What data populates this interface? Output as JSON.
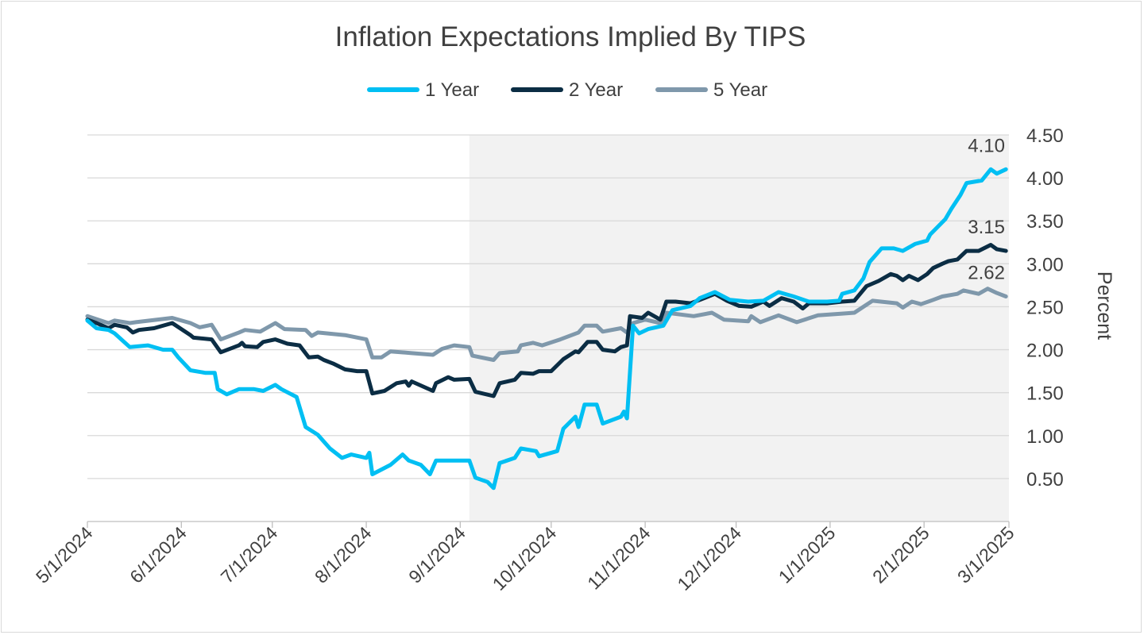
{
  "chart_data": {
    "type": "line",
    "title": "Inflation Expectations Implied By TIPS",
    "ylabel": "Percent",
    "xlabel": "",
    "ylim": [
      0,
      4.5
    ],
    "y_ticks": [
      "0.50",
      "1.00",
      "1.50",
      "2.00",
      "2.50",
      "3.00",
      "3.50",
      "4.00",
      "4.50"
    ],
    "y_axis_side": "right",
    "xlim": [
      "2024-05-01",
      "2025-03-01"
    ],
    "x_ticks": [
      "5/1/2024",
      "6/1/2024",
      "7/1/2024",
      "8/1/2024",
      "9/1/2024",
      "10/1/2024",
      "11/1/2024",
      "12/1/2024",
      "1/1/2025",
      "2/1/2025",
      "3/1/2025"
    ],
    "x_tick_dates": [
      "2024-05-01",
      "2024-06-01",
      "2024-07-01",
      "2024-08-01",
      "2024-09-01",
      "2024-10-01",
      "2024-11-01",
      "2024-12-01",
      "2025-01-01",
      "2025-02-01",
      "2025-03-01"
    ],
    "grid": "horizontal",
    "legend_position": "top",
    "shaded_region": {
      "start": "2024-09-04",
      "end": "2025-03-01",
      "color": "#F2F2F2"
    },
    "series": [
      {
        "name": "1 Year",
        "color": "#00BFF3",
        "end_label": "4.10",
        "points": [
          [
            "2024-05-01",
            2.34
          ],
          [
            "2024-05-04",
            2.25
          ],
          [
            "2024-05-08",
            2.23
          ],
          [
            "2024-05-10",
            2.19
          ],
          [
            "2024-05-15",
            2.03
          ],
          [
            "2024-05-21",
            2.05
          ],
          [
            "2024-05-26",
            2.0
          ],
          [
            "2024-05-29",
            2.0
          ],
          [
            "2024-05-31",
            1.91
          ],
          [
            "2024-06-04",
            1.76
          ],
          [
            "2024-06-09",
            1.73
          ],
          [
            "2024-06-12",
            1.73
          ],
          [
            "2024-06-13",
            1.54
          ],
          [
            "2024-06-16",
            1.48
          ],
          [
            "2024-06-20",
            1.54
          ],
          [
            "2024-06-25",
            1.54
          ],
          [
            "2024-06-28",
            1.52
          ],
          [
            "2024-07-02",
            1.59
          ],
          [
            "2024-07-04",
            1.54
          ],
          [
            "2024-07-09",
            1.45
          ],
          [
            "2024-07-12",
            1.1
          ],
          [
            "2024-07-16",
            1.01
          ],
          [
            "2024-07-20",
            0.85
          ],
          [
            "2024-07-24",
            0.74
          ],
          [
            "2024-07-27",
            0.78
          ],
          [
            "2024-08-01",
            0.74
          ],
          [
            "2024-08-02",
            0.8
          ],
          [
            "2024-08-03",
            0.55
          ],
          [
            "2024-08-09",
            0.66
          ],
          [
            "2024-08-13",
            0.78
          ],
          [
            "2024-08-15",
            0.71
          ],
          [
            "2024-08-19",
            0.66
          ],
          [
            "2024-08-22",
            0.55
          ],
          [
            "2024-08-24",
            0.71
          ],
          [
            "2024-08-28",
            0.71
          ],
          [
            "2024-08-31",
            0.71
          ],
          [
            "2024-09-04",
            0.71
          ],
          [
            "2024-09-06",
            0.51
          ],
          [
            "2024-09-10",
            0.46
          ],
          [
            "2024-09-12",
            0.39
          ],
          [
            "2024-09-14",
            0.68
          ],
          [
            "2024-09-19",
            0.74
          ],
          [
            "2024-09-21",
            0.85
          ],
          [
            "2024-09-26",
            0.82
          ],
          [
            "2024-09-27",
            0.76
          ],
          [
            "2024-10-03",
            0.82
          ],
          [
            "2024-10-05",
            1.08
          ],
          [
            "2024-10-09",
            1.22
          ],
          [
            "2024-10-10",
            1.1
          ],
          [
            "2024-10-12",
            1.36
          ],
          [
            "2024-10-16",
            1.36
          ],
          [
            "2024-10-18",
            1.14
          ],
          [
            "2024-10-24",
            1.22
          ],
          [
            "2024-10-25",
            1.28
          ],
          [
            "2024-10-26",
            1.2
          ],
          [
            "2024-10-28",
            2.28
          ],
          [
            "2024-10-30",
            2.19
          ],
          [
            "2024-11-02",
            2.24
          ],
          [
            "2024-11-07",
            2.28
          ],
          [
            "2024-11-10",
            2.46
          ],
          [
            "2024-11-16",
            2.51
          ],
          [
            "2024-11-19",
            2.6
          ],
          [
            "2024-11-24",
            2.67
          ],
          [
            "2024-11-29",
            2.58
          ],
          [
            "2024-12-05",
            2.56
          ],
          [
            "2024-12-10",
            2.57
          ],
          [
            "2024-12-15",
            2.67
          ],
          [
            "2024-12-20",
            2.62
          ],
          [
            "2024-12-25",
            2.56
          ],
          [
            "2024-12-31",
            2.56
          ],
          [
            "2025-01-04",
            2.57
          ],
          [
            "2025-01-05",
            2.65
          ],
          [
            "2025-01-09",
            2.69
          ],
          [
            "2025-01-12",
            2.83
          ],
          [
            "2025-01-14",
            3.02
          ],
          [
            "2025-01-18",
            3.18
          ],
          [
            "2025-01-22",
            3.18
          ],
          [
            "2025-01-25",
            3.15
          ],
          [
            "2025-01-29",
            3.23
          ],
          [
            "2025-02-02",
            3.27
          ],
          [
            "2025-02-03",
            3.34
          ],
          [
            "2025-02-08",
            3.52
          ],
          [
            "2025-02-10",
            3.64
          ],
          [
            "2025-02-13",
            3.8
          ],
          [
            "2025-02-15",
            3.94
          ],
          [
            "2025-02-20",
            3.97
          ],
          [
            "2025-02-23",
            4.1
          ],
          [
            "2025-02-25",
            4.05
          ],
          [
            "2025-02-28",
            4.1
          ]
        ]
      },
      {
        "name": "2 Year",
        "color": "#0B2D44",
        "end_label": "3.15",
        "points": [
          [
            "2024-05-01",
            2.35
          ],
          [
            "2024-05-04",
            2.31
          ],
          [
            "2024-05-08",
            2.25
          ],
          [
            "2024-05-10",
            2.29
          ],
          [
            "2024-05-14",
            2.26
          ],
          [
            "2024-05-16",
            2.2
          ],
          [
            "2024-05-18",
            2.23
          ],
          [
            "2024-05-23",
            2.25
          ],
          [
            "2024-05-29",
            2.31
          ],
          [
            "2024-06-04",
            2.17
          ],
          [
            "2024-06-05",
            2.14
          ],
          [
            "2024-06-11",
            2.12
          ],
          [
            "2024-06-14",
            1.97
          ],
          [
            "2024-06-20",
            2.05
          ],
          [
            "2024-06-21",
            2.08
          ],
          [
            "2024-06-22",
            2.04
          ],
          [
            "2024-06-26",
            2.03
          ],
          [
            "2024-06-28",
            2.09
          ],
          [
            "2024-07-02",
            2.12
          ],
          [
            "2024-07-06",
            2.07
          ],
          [
            "2024-07-10",
            2.05
          ],
          [
            "2024-07-13",
            1.91
          ],
          [
            "2024-07-16",
            1.92
          ],
          [
            "2024-07-18",
            1.88
          ],
          [
            "2024-07-21",
            1.84
          ],
          [
            "2024-07-25",
            1.77
          ],
          [
            "2024-07-29",
            1.75
          ],
          [
            "2024-08-01",
            1.75
          ],
          [
            "2024-08-03",
            1.49
          ],
          [
            "2024-08-07",
            1.52
          ],
          [
            "2024-08-11",
            1.61
          ],
          [
            "2024-08-14",
            1.63
          ],
          [
            "2024-08-15",
            1.58
          ],
          [
            "2024-08-16",
            1.63
          ],
          [
            "2024-08-23",
            1.52
          ],
          [
            "2024-08-24",
            1.61
          ],
          [
            "2024-08-28",
            1.68
          ],
          [
            "2024-08-30",
            1.65
          ],
          [
            "2024-09-04",
            1.66
          ],
          [
            "2024-09-06",
            1.51
          ],
          [
            "2024-09-12",
            1.46
          ],
          [
            "2024-09-14",
            1.61
          ],
          [
            "2024-09-19",
            1.65
          ],
          [
            "2024-09-21",
            1.73
          ],
          [
            "2024-09-25",
            1.72
          ],
          [
            "2024-09-27",
            1.75
          ],
          [
            "2024-10-01",
            1.75
          ],
          [
            "2024-10-05",
            1.89
          ],
          [
            "2024-10-09",
            1.98
          ],
          [
            "2024-10-10",
            1.97
          ],
          [
            "2024-10-13",
            2.09
          ],
          [
            "2024-10-16",
            2.09
          ],
          [
            "2024-10-18",
            2.0
          ],
          [
            "2024-10-22",
            1.98
          ],
          [
            "2024-10-24",
            2.03
          ],
          [
            "2024-10-26",
            2.05
          ],
          [
            "2024-10-27",
            2.39
          ],
          [
            "2024-10-31",
            2.37
          ],
          [
            "2024-11-02",
            2.43
          ],
          [
            "2024-11-06",
            2.35
          ],
          [
            "2024-11-08",
            2.56
          ],
          [
            "2024-11-11",
            2.56
          ],
          [
            "2024-11-16",
            2.54
          ],
          [
            "2024-11-19",
            2.58
          ],
          [
            "2024-11-24",
            2.65
          ],
          [
            "2024-11-28",
            2.57
          ],
          [
            "2024-12-02",
            2.51
          ],
          [
            "2024-12-06",
            2.5
          ],
          [
            "2024-12-10",
            2.56
          ],
          [
            "2024-12-12",
            2.51
          ],
          [
            "2024-12-16",
            2.6
          ],
          [
            "2024-12-20",
            2.56
          ],
          [
            "2024-12-23",
            2.48
          ],
          [
            "2024-12-25",
            2.54
          ],
          [
            "2024-12-31",
            2.54
          ],
          [
            "2025-01-05",
            2.56
          ],
          [
            "2025-01-09",
            2.57
          ],
          [
            "2025-01-13",
            2.74
          ],
          [
            "2025-01-17",
            2.8
          ],
          [
            "2025-01-21",
            2.88
          ],
          [
            "2025-01-23",
            2.86
          ],
          [
            "2025-01-25",
            2.81
          ],
          [
            "2025-01-27",
            2.86
          ],
          [
            "2025-01-30",
            2.81
          ],
          [
            "2025-02-02",
            2.88
          ],
          [
            "2025-02-04",
            2.95
          ],
          [
            "2025-02-07",
            3.0
          ],
          [
            "2025-02-09",
            3.03
          ],
          [
            "2025-02-12",
            3.05
          ],
          [
            "2025-02-15",
            3.15
          ],
          [
            "2025-02-19",
            3.15
          ],
          [
            "2025-02-23",
            3.22
          ],
          [
            "2025-02-25",
            3.17
          ],
          [
            "2025-02-28",
            3.15
          ]
        ]
      },
      {
        "name": "5 Year",
        "color": "#7F98AB",
        "end_label": "2.62",
        "points": [
          [
            "2024-05-01",
            2.39
          ],
          [
            "2024-05-07",
            2.32
          ],
          [
            "2024-05-08",
            2.31
          ],
          [
            "2024-05-10",
            2.34
          ],
          [
            "2024-05-15",
            2.31
          ],
          [
            "2024-05-17",
            2.32
          ],
          [
            "2024-05-29",
            2.37
          ],
          [
            "2024-06-04",
            2.31
          ],
          [
            "2024-06-07",
            2.26
          ],
          [
            "2024-06-11",
            2.29
          ],
          [
            "2024-06-14",
            2.12
          ],
          [
            "2024-06-20",
            2.2
          ],
          [
            "2024-06-22",
            2.23
          ],
          [
            "2024-06-27",
            2.21
          ],
          [
            "2024-07-02",
            2.31
          ],
          [
            "2024-07-05",
            2.24
          ],
          [
            "2024-07-12",
            2.23
          ],
          [
            "2024-07-14",
            2.16
          ],
          [
            "2024-07-16",
            2.2
          ],
          [
            "2024-07-25",
            2.17
          ],
          [
            "2024-08-01",
            2.12
          ],
          [
            "2024-08-03",
            1.91
          ],
          [
            "2024-08-06",
            1.91
          ],
          [
            "2024-08-09",
            1.98
          ],
          [
            "2024-08-16",
            1.96
          ],
          [
            "2024-08-23",
            1.94
          ],
          [
            "2024-08-26",
            2.01
          ],
          [
            "2024-08-30",
            2.05
          ],
          [
            "2024-09-04",
            2.03
          ],
          [
            "2024-09-05",
            1.93
          ],
          [
            "2024-09-12",
            1.88
          ],
          [
            "2024-09-14",
            1.96
          ],
          [
            "2024-09-20",
            1.98
          ],
          [
            "2024-09-21",
            2.05
          ],
          [
            "2024-09-25",
            2.08
          ],
          [
            "2024-09-28",
            2.05
          ],
          [
            "2024-10-04",
            2.12
          ],
          [
            "2024-10-10",
            2.2
          ],
          [
            "2024-10-12",
            2.28
          ],
          [
            "2024-10-16",
            2.28
          ],
          [
            "2024-10-18",
            2.21
          ],
          [
            "2024-10-24",
            2.25
          ],
          [
            "2024-10-26",
            2.2
          ],
          [
            "2024-10-28",
            2.31
          ],
          [
            "2024-11-01",
            2.35
          ],
          [
            "2024-11-06",
            2.31
          ],
          [
            "2024-11-08",
            2.43
          ],
          [
            "2024-11-17",
            2.39
          ],
          [
            "2024-11-23",
            2.43
          ],
          [
            "2024-11-27",
            2.35
          ],
          [
            "2024-12-05",
            2.33
          ],
          [
            "2024-12-06",
            2.39
          ],
          [
            "2024-12-09",
            2.32
          ],
          [
            "2024-12-15",
            2.4
          ],
          [
            "2024-12-21",
            2.32
          ],
          [
            "2024-12-28",
            2.4
          ],
          [
            "2025-01-05",
            2.42
          ],
          [
            "2025-01-09",
            2.43
          ],
          [
            "2025-01-15",
            2.57
          ],
          [
            "2025-01-23",
            2.54
          ],
          [
            "2025-01-25",
            2.49
          ],
          [
            "2025-01-28",
            2.56
          ],
          [
            "2025-01-31",
            2.53
          ],
          [
            "2025-02-04",
            2.58
          ],
          [
            "2025-02-07",
            2.62
          ],
          [
            "2025-02-12",
            2.65
          ],
          [
            "2025-02-14",
            2.69
          ],
          [
            "2025-02-19",
            2.65
          ],
          [
            "2025-02-22",
            2.71
          ],
          [
            "2025-02-25",
            2.66
          ],
          [
            "2025-02-28",
            2.62
          ]
        ]
      }
    ]
  }
}
